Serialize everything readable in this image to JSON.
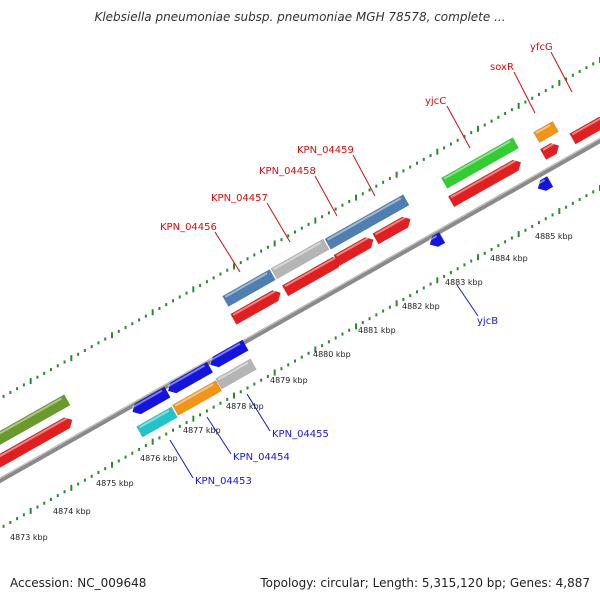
{
  "title": "Klebsiella pneumoniae subsp. pneumoniae MGH 78578, complete ...",
  "footer": {
    "accession": "Accession: NC_009648",
    "summary": "Topology: circular; Length: 5,315,120 bp; Genes: 4,887"
  },
  "colors": {
    "backbone": "#888888",
    "tick": "#2a8a2a",
    "cds": "#e02020",
    "fwd_label": "#cc1111",
    "rev_label": "#1a1acc",
    "rev_gene": "#1414dd",
    "rna_steelblue": "#4f7fb0",
    "rna_grey": "#b5b5b5",
    "green": "#33cc33",
    "olive": "#6b9a2c",
    "orange": "#f0941a",
    "cyan": "#22c4c8"
  },
  "ticks": [
    "4873 kbp",
    "4874 kbp",
    "4875 kbp",
    "4876 kbp",
    "4877 kbp",
    "4878 kbp",
    "4879 kbp",
    "4880 kbp",
    "4881 kbp",
    "4882 kbp",
    "4883 kbp",
    "4884 kbp",
    "4885 kbp"
  ],
  "genes_forward": [
    "KPN_04456",
    "KPN_04457",
    "KPN_04458",
    "KPN_04459",
    "yjcC",
    "soxR",
    "yfcG"
  ],
  "genes_reverse": [
    "KPN_04453",
    "KPN_04454",
    "KPN_04455",
    "yjcB"
  ]
}
